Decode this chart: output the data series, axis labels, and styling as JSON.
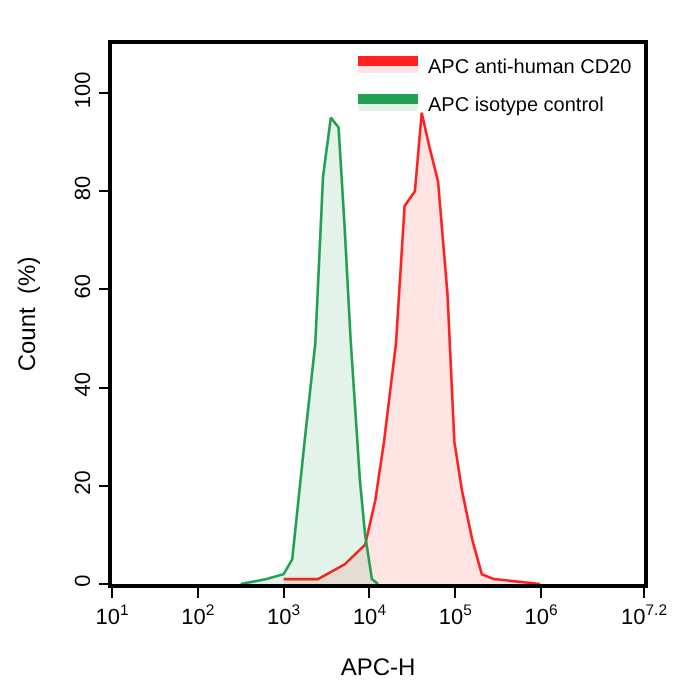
{
  "chart_data": {
    "type": "area",
    "xlabel": "APC-H",
    "ylabel": "Count  (%)",
    "log": "x",
    "xlim": [
      10,
      15848932
    ],
    "ylim": [
      0,
      110
    ],
    "xticks": [
      {
        "value": 10,
        "label": "10$^{1}$"
      },
      {
        "value": 100,
        "label": "10$^{2}$"
      },
      {
        "value": 1000,
        "label": "10$^{3}$"
      },
      {
        "value": 10000,
        "label": "10$^{4}$"
      },
      {
        "value": 100000,
        "label": "10$^{5}$"
      },
      {
        "value": 1000000,
        "label": "10$^{6}$"
      },
      {
        "value": 15848932,
        "label": "10$^{7.2}$"
      }
    ],
    "yticks": [
      0,
      20,
      40,
      60,
      80,
      100
    ],
    "legend": "top right",
    "series": [
      {
        "name": "APC anti-human CD20",
        "color": "#ff2020",
        "x": [
          1000,
          2510,
          5130,
          8910,
          11700,
          14800,
          20400,
          25700,
          33900,
          40700,
          50100,
          63100,
          81300,
          97700,
          120000,
          158000,
          204000,
          282000,
          977000
        ],
        "values": [
          1,
          1,
          4,
          8,
          17,
          29,
          49,
          77,
          80,
          96,
          89,
          82,
          59,
          29,
          19,
          9,
          2,
          1,
          0
        ]
      },
      {
        "name": "APC isotype control",
        "color": "#20a050",
        "x": [
          316,
          631,
          1000,
          1260,
          1780,
          2340,
          2880,
          3550,
          4370,
          5130,
          6030,
          7760,
          8910,
          10700,
          12600
        ],
        "values": [
          0,
          1,
          2,
          5,
          30,
          49,
          83,
          95,
          93,
          73,
          50,
          21,
          10,
          1,
          0
        ]
      }
    ]
  }
}
